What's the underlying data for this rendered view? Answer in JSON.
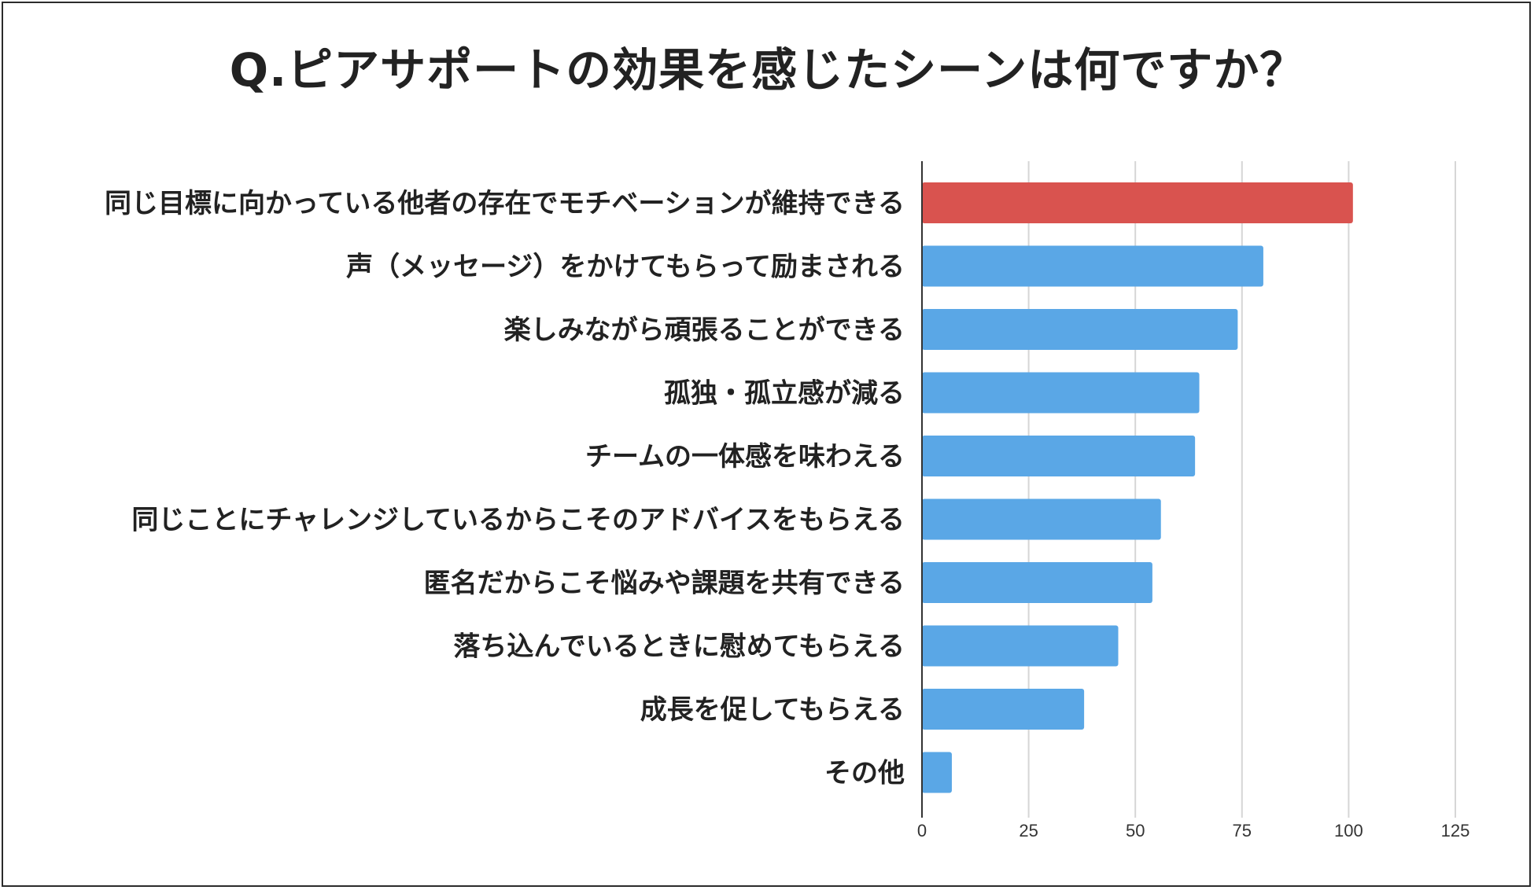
{
  "chart_data": {
    "type": "bar",
    "orientation": "horizontal",
    "title": "Q.ピアサポートの効果を感じたシーンは何ですか？",
    "categories": [
      "同じ目標に向かっている他者の存在でモチベーションが維持できる",
      "声（メッセージ）をかけてもらって励まされる",
      "楽しみながら頑張ることができる",
      "孤独・孤立感が減る",
      "チームの一体感を味わえる",
      "同じことにチャレンジしているからこそのアドバイスをもらえる",
      "匿名だからこそ悩みや課題を共有できる",
      "落ち込んでいるときに慰めてもらえる",
      "成長を促してもらえる",
      "その他"
    ],
    "values": [
      101,
      80,
      74,
      65,
      64,
      56,
      54,
      46,
      38,
      7
    ],
    "highlight_color": "#d9534f",
    "bar_color": "#5aa7e6",
    "xlim": [
      0,
      125
    ],
    "xticks": [
      0,
      25,
      50,
      75,
      100,
      125
    ],
    "grid": true,
    "legend": "none"
  }
}
